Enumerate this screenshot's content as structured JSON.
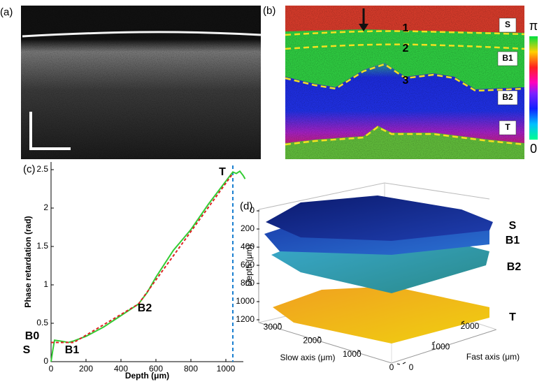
{
  "panel_labels": [
    "(a)",
    "(b)",
    "(c)",
    "(d)"
  ],
  "panel_b": {
    "layer_labels": [
      "S",
      "B1",
      "B2",
      "T"
    ],
    "boundary_labels": [
      "1",
      "2",
      "3"
    ],
    "colorbar_labels": [
      "π",
      "0"
    ]
  },
  "chart_data": {
    "type": "line",
    "x_label": "Depth (μm)",
    "y_label": "Phase retardation (rad)",
    "series": [
      {
        "color": "#33cc33",
        "style": "solid",
        "x": [
          0,
          10,
          20,
          50,
          100,
          130,
          200,
          300,
          400,
          500,
          550,
          600,
          700,
          800,
          900,
          1000,
          1040,
          1060,
          1080,
          1100,
          1110
        ],
        "values": [
          0,
          0.15,
          0.28,
          0.27,
          0.25,
          0.27,
          0.33,
          0.45,
          0.6,
          0.75,
          0.9,
          1.1,
          1.45,
          1.72,
          2.05,
          2.35,
          2.47,
          2.45,
          2.48,
          2.42,
          2.38
        ]
      },
      {
        "color": "#dd2222",
        "style": "dashed",
        "x": [
          0,
          130,
          500,
          1040
        ],
        "values": [
          0.25,
          0.25,
          0.75,
          2.45
        ]
      }
    ],
    "vline": {
      "x": 1040,
      "color": "#1a7fd0"
    },
    "annotations": [
      "T",
      "B0",
      "S",
      "B1",
      "B2"
    ],
    "xlim": [
      0,
      1100
    ],
    "xticks": [
      0,
      200,
      400,
      600,
      800,
      1000
    ],
    "ylim": [
      0,
      2.6
    ],
    "yticks": [
      0,
      0.5,
      1,
      1.5,
      2,
      2.5
    ]
  },
  "panel_d": {
    "z_label": "Depth (μm)",
    "slow_label": "Slow axis (μm)",
    "fast_label": "Fast axis (μm)",
    "depth_ticks": [
      0,
      200,
      400,
      600,
      800,
      1000,
      1200
    ],
    "slow_ticks": [
      3000,
      2000,
      1000,
      0
    ],
    "fast_ticks": [
      0,
      1000,
      2000
    ],
    "layer_labels": [
      "S",
      "B1",
      "B2",
      "T"
    ]
  }
}
